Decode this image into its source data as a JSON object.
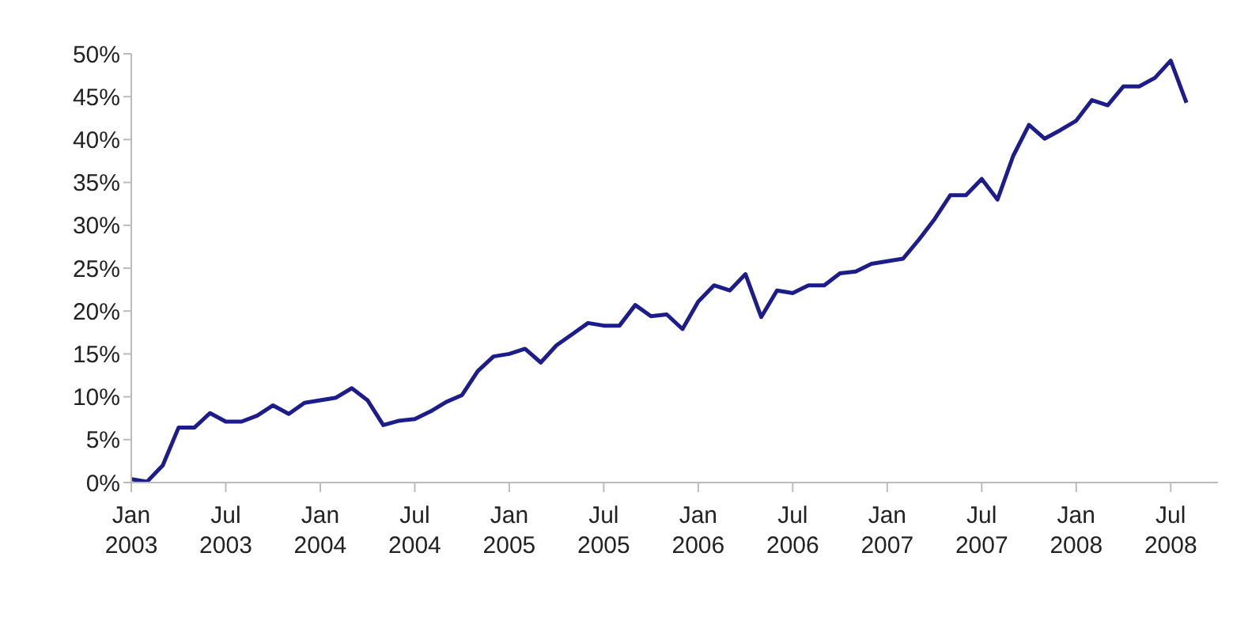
{
  "chart_data": {
    "type": "line",
    "x": [
      "2003-01",
      "2003-02",
      "2003-03",
      "2003-04",
      "2003-05",
      "2003-06",
      "2003-07",
      "2003-08",
      "2003-09",
      "2003-10",
      "2003-11",
      "2003-12",
      "2004-01",
      "2004-02",
      "2004-03",
      "2004-04",
      "2004-05",
      "2004-06",
      "2004-07",
      "2004-08",
      "2004-09",
      "2004-10",
      "2004-11",
      "2004-12",
      "2005-01",
      "2005-02",
      "2005-03",
      "2005-04",
      "2005-05",
      "2005-06",
      "2005-07",
      "2005-08",
      "2005-09",
      "2005-10",
      "2005-11",
      "2005-12",
      "2006-01",
      "2006-02",
      "2006-03",
      "2006-04",
      "2006-05",
      "2006-06",
      "2006-07",
      "2006-08",
      "2006-09",
      "2006-10",
      "2006-11",
      "2006-12",
      "2007-01",
      "2007-02",
      "2007-03",
      "2007-04",
      "2007-05",
      "2007-06",
      "2007-07",
      "2007-08",
      "2007-09",
      "2007-10",
      "2007-11",
      "2007-12",
      "2008-01",
      "2008-02",
      "2008-03",
      "2008-04",
      "2008-05",
      "2008-06",
      "2008-07",
      "2008-08"
    ],
    "series": [
      {
        "color": "#1c1c8c",
        "values": [
          0.4,
          0.1,
          2.0,
          6.4,
          6.4,
          8.1,
          7.1,
          7.1,
          7.8,
          9.0,
          8.0,
          9.3,
          9.6,
          9.9,
          11.0,
          9.6,
          6.7,
          7.2,
          7.4,
          8.3,
          9.4,
          10.2,
          13.0,
          14.7,
          15.0,
          15.6,
          14.0,
          16.0,
          17.3,
          18.6,
          18.3,
          18.3,
          20.7,
          19.4,
          19.6,
          17.9,
          21.1,
          23.0,
          22.4,
          24.3,
          19.3,
          22.4,
          22.1,
          23.0,
          23.0,
          24.4,
          24.6,
          25.5,
          25.8,
          26.1,
          28.3,
          30.7,
          33.5,
          33.5,
          35.4,
          33.0,
          38.1,
          41.7,
          40.1,
          41.1,
          42.2,
          44.6,
          44.0,
          46.2,
          46.2,
          47.2,
          49.2,
          44.3
        ]
      }
    ],
    "xlim": [
      "2003-01",
      "2008-10"
    ],
    "xticks": [
      {
        "value": "2003-01",
        "label": "Jan 2003"
      },
      {
        "value": "2003-07",
        "label": "Jul 2003"
      },
      {
        "value": "2004-01",
        "label": "Jan 2004"
      },
      {
        "value": "2004-07",
        "label": "Jul 2004"
      },
      {
        "value": "2005-01",
        "label": "Jan 2005"
      },
      {
        "value": "2005-07",
        "label": "Jul 2005"
      },
      {
        "value": "2006-01",
        "label": "Jan 2006"
      },
      {
        "value": "2006-07",
        "label": "Jul 2006"
      },
      {
        "value": "2007-01",
        "label": "Jan 2007"
      },
      {
        "value": "2007-07",
        "label": "Jul 2007"
      },
      {
        "value": "2008-01",
        "label": "Jan 2008"
      },
      {
        "value": "2008-07",
        "label": "Jul 2008"
      }
    ],
    "ylim": [
      0,
      50
    ],
    "yticks": [
      {
        "value": 0,
        "label": "0%"
      },
      {
        "value": 5,
        "label": "5%"
      },
      {
        "value": 10,
        "label": "10%"
      },
      {
        "value": 15,
        "label": "15%"
      },
      {
        "value": 20,
        "label": "20%"
      },
      {
        "value": 25,
        "label": "25%"
      },
      {
        "value": 30,
        "label": "30%"
      },
      {
        "value": 35,
        "label": "35%"
      },
      {
        "value": 40,
        "label": "40%"
      },
      {
        "value": 45,
        "label": "45%"
      },
      {
        "value": 50,
        "label": "50%"
      }
    ],
    "marker": "none",
    "line_style": "solid",
    "legend": false
  }
}
